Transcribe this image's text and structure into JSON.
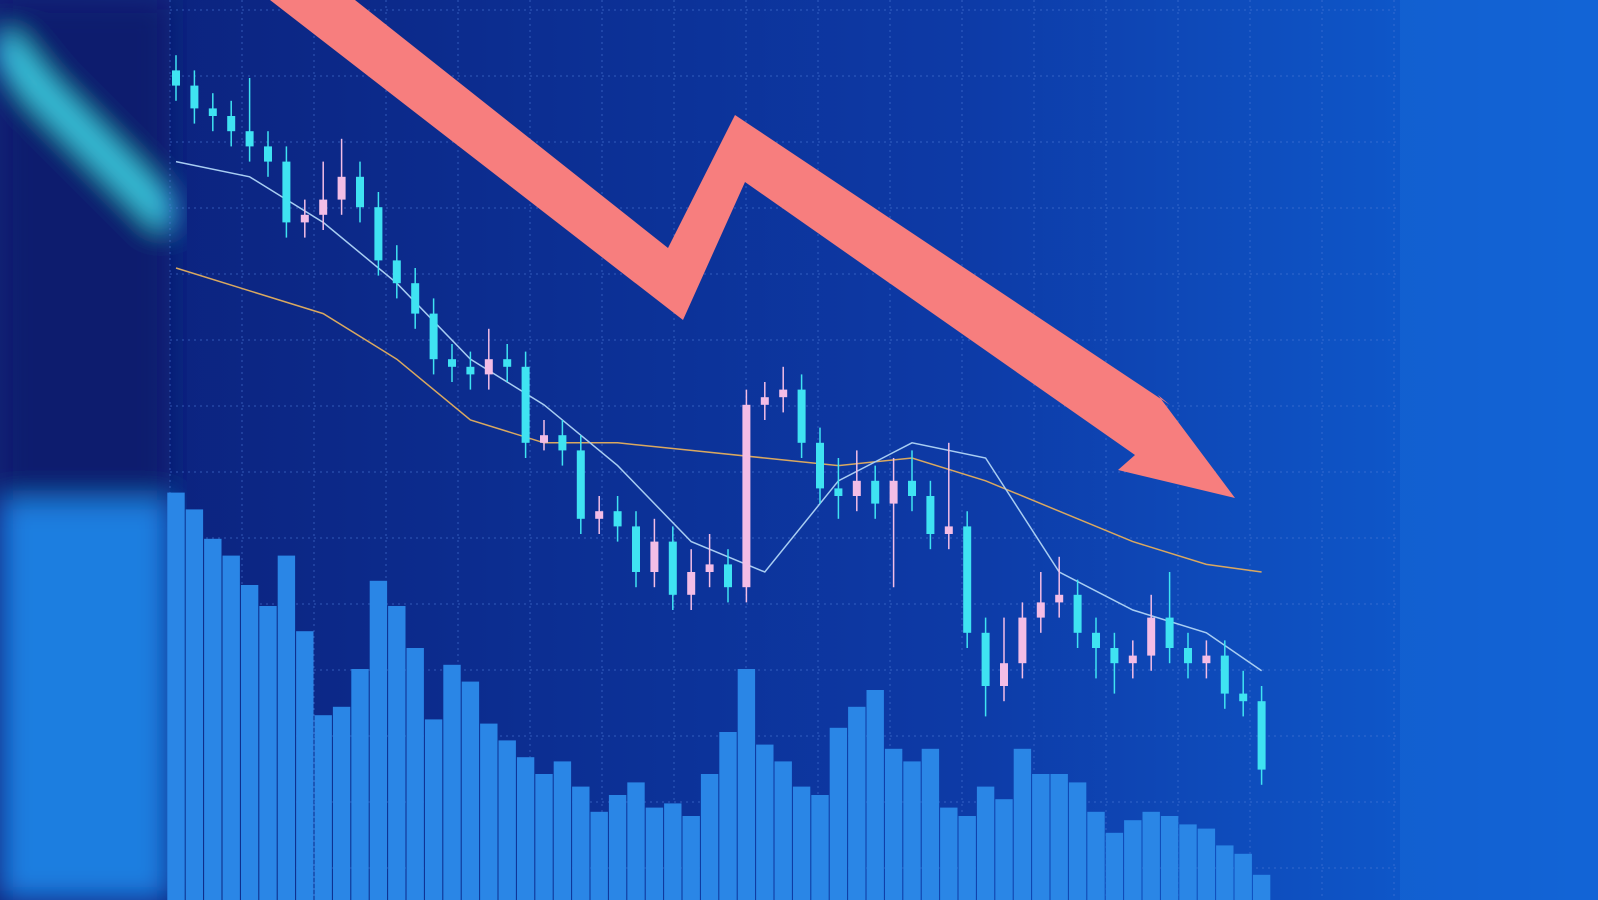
{
  "chart_data": {
    "type": "candlestick",
    "open": [
      96,
      94,
      91,
      90,
      88,
      86,
      84,
      76,
      77,
      79,
      82,
      78,
      71,
      68,
      64,
      58,
      57,
      56,
      58,
      57,
      47,
      48,
      46,
      37,
      38,
      36,
      30,
      34,
      27,
      30,
      31,
      28,
      52,
      53,
      54,
      47,
      41,
      40,
      42,
      39,
      42,
      40,
      35,
      36,
      22,
      15,
      18,
      24,
      26,
      27,
      22,
      20,
      18,
      19,
      24,
      20,
      18,
      19,
      14,
      13
    ],
    "high": [
      98,
      96,
      93,
      92,
      95,
      88,
      86,
      79,
      84,
      87,
      84,
      80,
      73,
      70,
      66,
      60,
      59,
      62,
      60,
      59,
      50,
      50,
      48,
      40,
      40,
      38,
      37,
      36,
      33,
      35,
      33,
      54,
      55,
      57,
      56,
      49,
      45,
      46,
      44,
      45,
      46,
      42,
      47,
      38,
      24,
      24,
      26,
      30,
      32,
      29,
      24,
      22,
      21,
      27,
      30,
      22,
      21,
      21,
      17,
      15
    ],
    "low": [
      92,
      89,
      88,
      86,
      84,
      82,
      74,
      74,
      75,
      77,
      76,
      69,
      66,
      62,
      56,
      55,
      54,
      54,
      55,
      45,
      46,
      44,
      35,
      35,
      34,
      28,
      28,
      25,
      25,
      28,
      26,
      26,
      50,
      51,
      45,
      39,
      37,
      38,
      37,
      28,
      38,
      33,
      33,
      20,
      11,
      13,
      16,
      22,
      24,
      20,
      16,
      14,
      16,
      17,
      18,
      16,
      16,
      12,
      11,
      2
    ],
    "close": [
      94,
      91,
      90,
      88,
      86,
      84,
      76,
      77,
      79,
      82,
      78,
      71,
      68,
      64,
      58,
      57,
      56,
      58,
      57,
      47,
      48,
      46,
      37,
      38,
      36,
      30,
      34,
      27,
      30,
      31,
      28,
      52,
      53,
      54,
      47,
      41,
      40,
      42,
      39,
      42,
      40,
      35,
      36,
      22,
      15,
      18,
      24,
      26,
      27,
      22,
      20,
      18,
      19,
      24,
      20,
      18,
      19,
      14,
      13,
      4
    ],
    "up_color": "#f3bde6",
    "down_color": "#3fe3f2",
    "ylim": [
      0,
      100
    ],
    "volume": [
      97,
      93,
      86,
      82,
      75,
      70,
      82,
      64,
      44,
      46,
      55,
      76,
      70,
      60,
      43,
      56,
      52,
      42,
      38,
      34,
      30,
      33,
      27,
      21,
      25,
      28,
      22,
      23,
      20,
      30,
      40,
      55,
      37,
      33,
      27,
      25,
      41,
      46,
      50,
      36,
      33,
      36,
      22,
      20,
      27,
      24,
      36,
      30,
      30,
      28,
      21,
      16,
      19,
      21,
      20,
      18,
      17,
      13,
      11,
      6
    ],
    "volume_color": "#2a86e6",
    "volume_ylim": [
      0,
      100
    ],
    "grid": true,
    "lines": [
      {
        "color": "#d9a860",
        "x": [
          0,
          4,
          8,
          12,
          16,
          20,
          24,
          28,
          32,
          36,
          40,
          44,
          48,
          52,
          56,
          59
        ],
        "values": [
          70,
          67,
          64,
          58,
          50,
          47,
          47,
          46,
          45,
          44,
          45,
          42,
          38,
          34,
          31,
          30
        ]
      },
      {
        "color": "#a8cdf2",
        "x": [
          0,
          4,
          8,
          12,
          16,
          20,
          24,
          28,
          32,
          36,
          40,
          44,
          48,
          52,
          56,
          59
        ],
        "values": [
          84,
          82,
          76,
          68,
          58,
          52,
          44,
          34,
          30,
          42,
          47,
          45,
          30,
          25,
          22,
          17
        ]
      }
    ]
  }
}
